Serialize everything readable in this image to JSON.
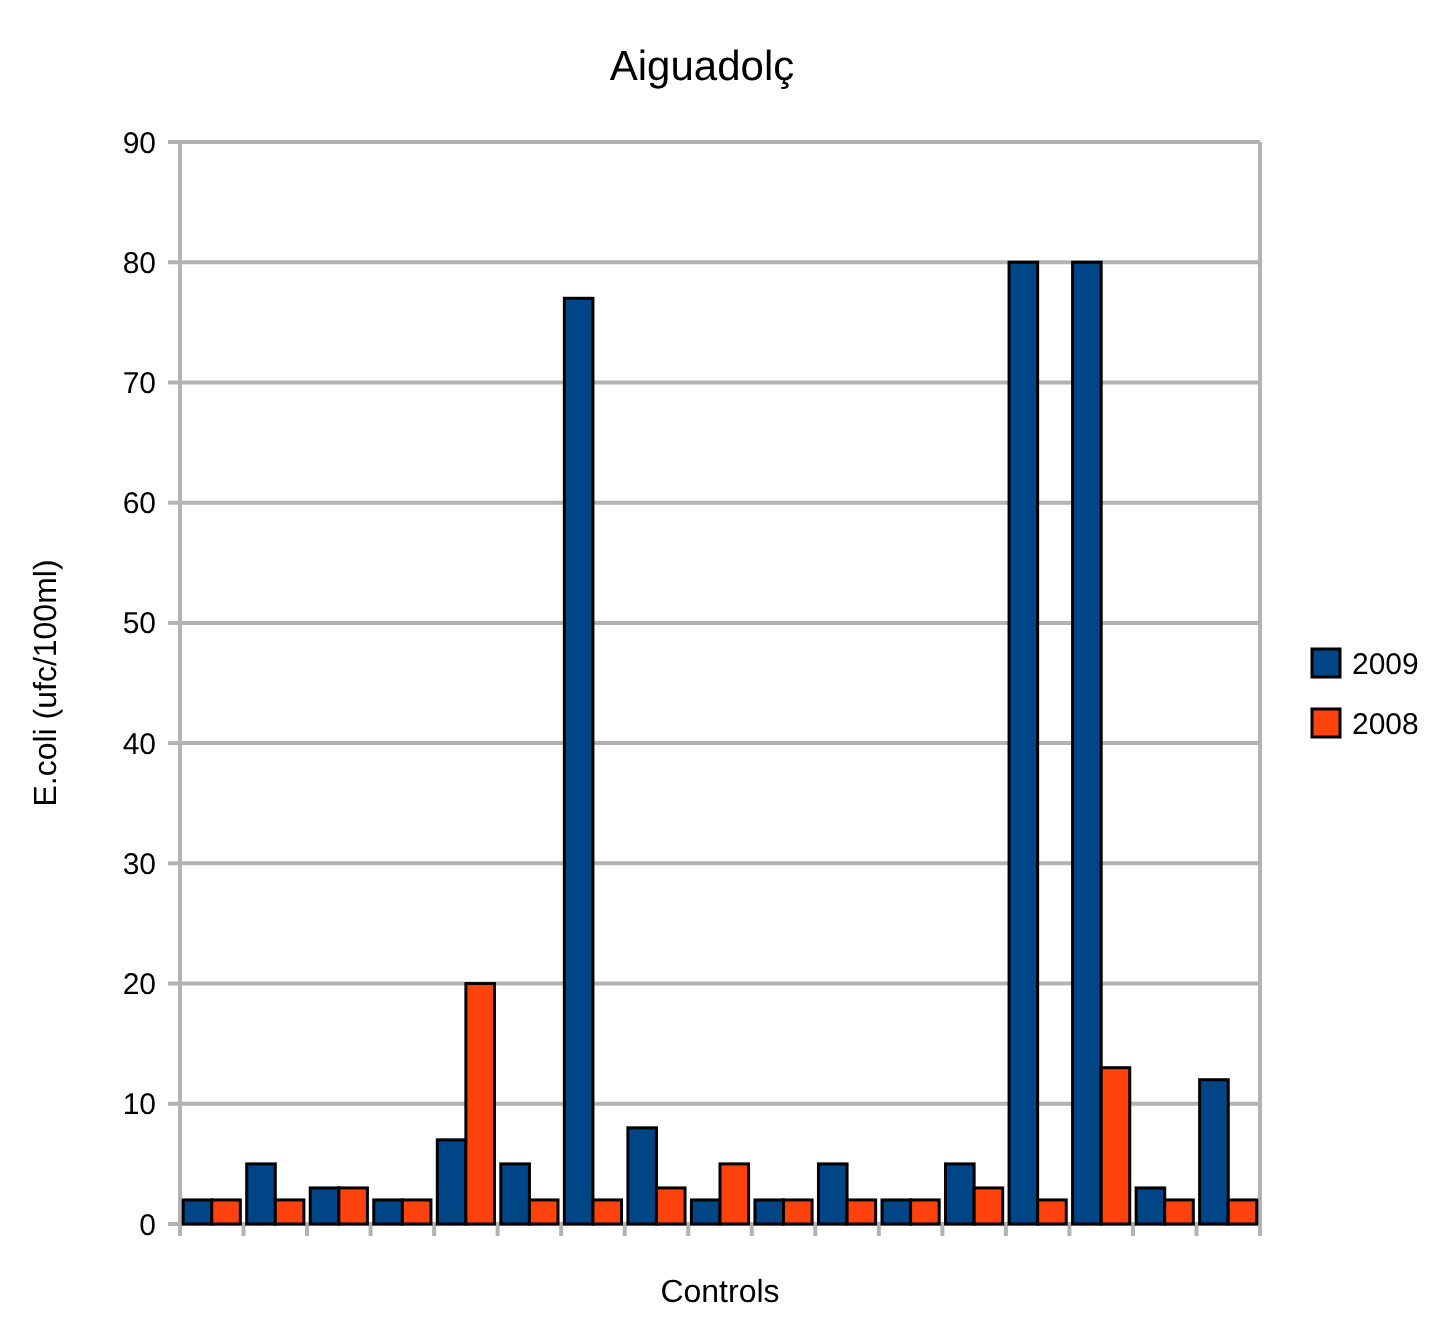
{
  "chart_data": {
    "type": "bar",
    "title": "Aiguadolç",
    "xlabel": "Controls",
    "ylabel": "E.coli (ufc/100ml)",
    "categories": [
      null,
      null,
      null,
      null,
      null,
      null,
      null,
      null,
      null,
      null,
      null,
      null,
      null,
      null,
      null,
      null,
      null
    ],
    "series": [
      {
        "name": "2009",
        "color": "#004586",
        "values": [
          2,
          5,
          3,
          2,
          7,
          5,
          77,
          8,
          2,
          2,
          5,
          2,
          5,
          80,
          80,
          3,
          12
        ]
      },
      {
        "name": "2008",
        "color": "#ff420e",
        "values": [
          2,
          2,
          3,
          2,
          20,
          2,
          2,
          3,
          5,
          2,
          2,
          2,
          3,
          2,
          13,
          2,
          2
        ]
      }
    ],
    "ylim": [
      0,
      90
    ],
    "yticks": [
      0,
      10,
      20,
      30,
      40,
      50,
      60,
      70,
      80,
      90
    ],
    "grid": "y",
    "legend": "right"
  }
}
